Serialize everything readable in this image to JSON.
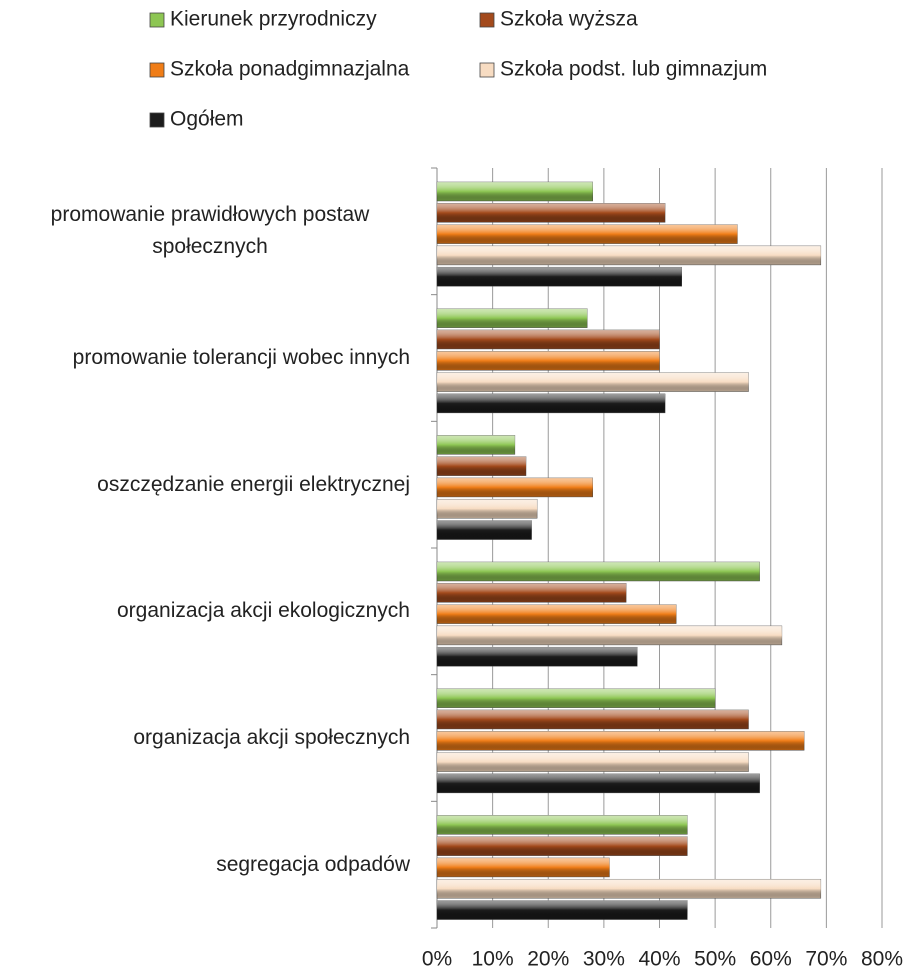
{
  "chart_data": {
    "type": "bar",
    "orientation": "horizontal",
    "categories": [
      "promowanie prawidłowych postaw społecznych",
      "promowanie tolerancji wobec innych",
      "oszczędzanie energii elektrycznej",
      "organizacja akcji ekologicznych",
      "organizacja akcji społecznych",
      "segregacja odpadów"
    ],
    "series": [
      {
        "name": "Kierunek przyrodniczy",
        "color": "#8dc653",
        "values": [
          28,
          27,
          14,
          58,
          50,
          45
        ]
      },
      {
        "name": "Szkoła wyższa",
        "color": "#a34a1c",
        "values": [
          41,
          40,
          16,
          34,
          56,
          45
        ]
      },
      {
        "name": "Szkoła ponadgimnazjalna",
        "color": "#f07d17",
        "values": [
          54,
          40,
          28,
          43,
          66,
          31
        ]
      },
      {
        "name": "Szkoła podst. lub gimnazjum",
        "color": "#f7dcc2",
        "values": [
          69,
          56,
          18,
          62,
          56,
          69
        ]
      },
      {
        "name": "Ogółem",
        "color": "#1c1c1c",
        "values": [
          44,
          41,
          17,
          36,
          58,
          45
        ]
      }
    ],
    "xlim": [
      0,
      80
    ],
    "xticks": [
      {
        "value": 0,
        "label": "0%"
      },
      {
        "value": 10,
        "label": "10%"
      },
      {
        "value": 20,
        "label": "20%"
      },
      {
        "value": 30,
        "label": "30%"
      },
      {
        "value": 40,
        "label": "40%"
      },
      {
        "value": 50,
        "label": "50%"
      },
      {
        "value": 60,
        "label": "60%"
      },
      {
        "value": 70,
        "label": "70%"
      },
      {
        "value": 80,
        "label": "80%"
      }
    ],
    "grid": true,
    "legend": "top"
  }
}
